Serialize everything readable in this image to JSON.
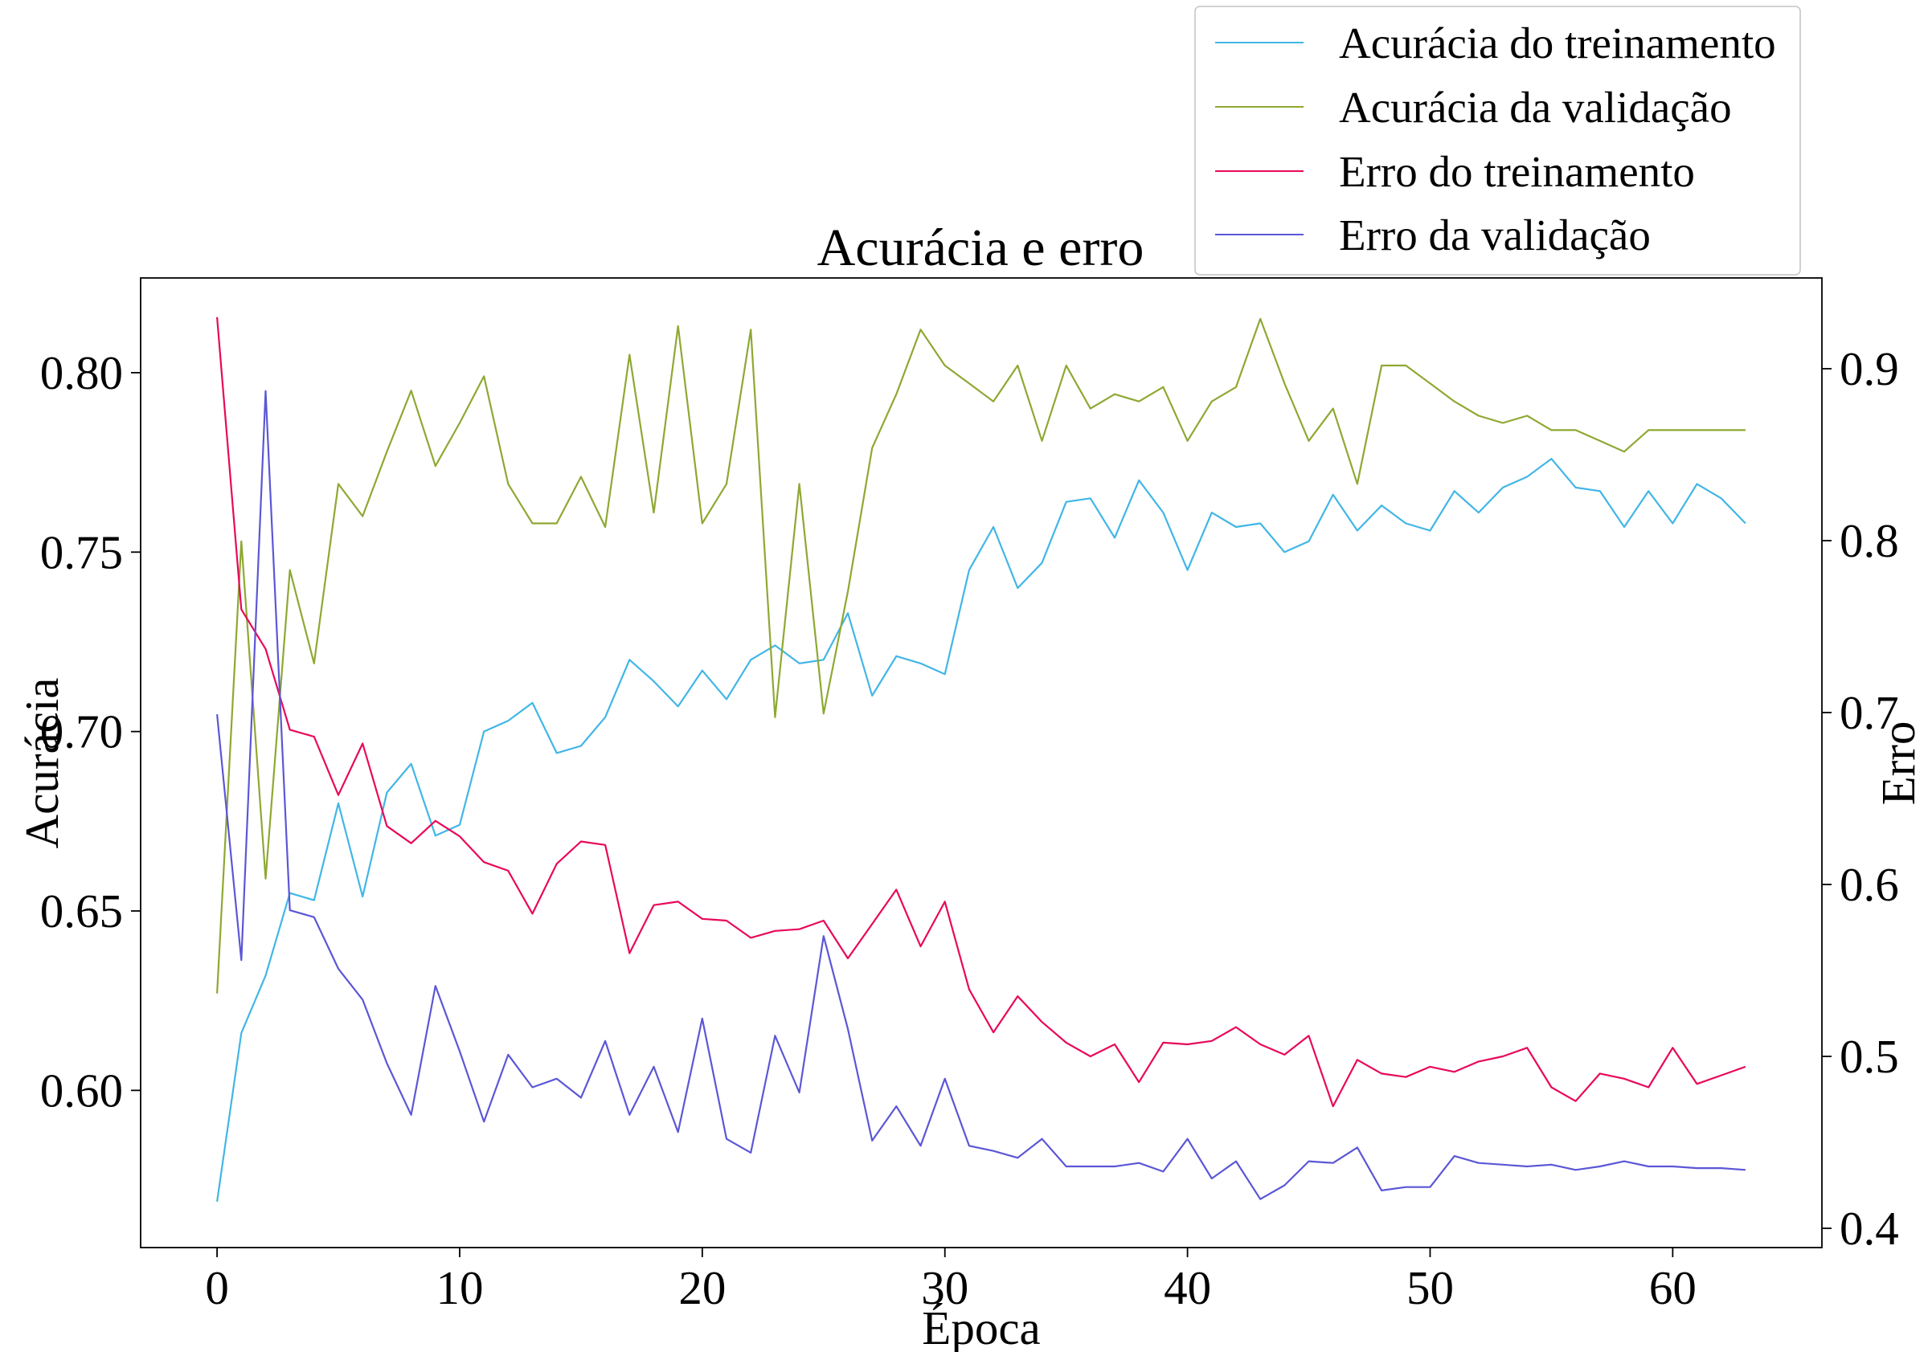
{
  "chart_data": {
    "type": "line",
    "title": "Acurácia e erro",
    "xlabel": "Época",
    "ylabel_left": "Acurácia",
    "ylabel_right": "Erro",
    "xlim": [
      -3.15,
      66.15
    ],
    "ylim_left": [
      0.5562,
      0.8264
    ],
    "ylim_right": [
      0.3888,
      0.9528
    ],
    "x_ticks": [
      0,
      10,
      20,
      30,
      40,
      50,
      60
    ],
    "x_tick_labels": [
      "0",
      "10",
      "20",
      "30",
      "40",
      "50",
      "60"
    ],
    "y_left_ticks": [
      0.6,
      0.65,
      0.7,
      0.75,
      0.8
    ],
    "y_left_tick_labels": [
      "0.60",
      "0.65",
      "0.70",
      "0.75",
      "0.80"
    ],
    "y_right_ticks": [
      0.4,
      0.5,
      0.6,
      0.7,
      0.8,
      0.9
    ],
    "y_right_tick_labels": [
      "0.4",
      "0.5",
      "0.6",
      "0.7",
      "0.8",
      "0.9"
    ],
    "grid": false,
    "legend_position": "top-right, above plot",
    "series": [
      {
        "name": "Acurácia do treinamento",
        "axis": "left",
        "color": "#41b6e6",
        "values": [
          0.569,
          0.616,
          0.632,
          0.655,
          0.653,
          0.68,
          0.654,
          0.683,
          0.691,
          0.671,
          0.674,
          0.7,
          0.703,
          0.708,
          0.694,
          0.696,
          0.704,
          0.72,
          0.714,
          0.707,
          0.717,
          0.709,
          0.72,
          0.724,
          0.719,
          0.72,
          0.733,
          0.71,
          0.721,
          0.719,
          0.716,
          0.745,
          0.757,
          0.74,
          0.747,
          0.764,
          0.765,
          0.754,
          0.77,
          0.761,
          0.745,
          0.761,
          0.757,
          0.758,
          0.75,
          0.753,
          0.766,
          0.756,
          0.763,
          0.758,
          0.756,
          0.767,
          0.761,
          0.768,
          0.771,
          0.776,
          0.768,
          0.767,
          0.757,
          0.767,
          0.758,
          0.769,
          0.765,
          0.758
        ]
      },
      {
        "name": "Acurácia da validação",
        "axis": "left",
        "color": "#8ea832",
        "values": [
          0.627,
          0.753,
          0.659,
          0.745,
          0.719,
          0.769,
          0.76,
          0.778,
          0.795,
          0.774,
          0.786,
          0.799,
          0.769,
          0.758,
          0.758,
          0.771,
          0.757,
          0.805,
          0.761,
          0.813,
          0.758,
          0.769,
          0.812,
          0.704,
          0.769,
          0.705,
          0.739,
          0.779,
          0.794,
          0.812,
          0.802,
          0.797,
          0.792,
          0.802,
          0.781,
          0.802,
          0.79,
          0.794,
          0.792,
          0.796,
          0.781,
          0.792,
          0.796,
          0.815,
          0.797,
          0.781,
          0.79,
          0.769,
          0.802,
          0.802,
          0.797,
          0.792,
          0.788,
          0.786,
          0.788,
          0.784,
          0.784,
          0.781,
          0.778,
          0.784,
          0.784,
          0.784,
          0.784,
          0.784
        ]
      },
      {
        "name": "Erro do treinamento",
        "axis": "right",
        "color": "#e8085a",
        "values": [
          0.93,
          0.76,
          0.737,
          0.69,
          0.686,
          0.652,
          0.682,
          0.634,
          0.624,
          0.637,
          0.628,
          0.613,
          0.608,
          0.583,
          0.612,
          0.625,
          0.623,
          0.56,
          0.588,
          0.59,
          0.58,
          0.579,
          0.569,
          0.573,
          0.574,
          0.579,
          0.557,
          0.577,
          0.597,
          0.564,
          0.59,
          0.539,
          0.514,
          0.535,
          0.52,
          0.508,
          0.5,
          0.507,
          0.485,
          0.508,
          0.507,
          0.509,
          0.517,
          0.507,
          0.501,
          0.512,
          0.471,
          0.498,
          0.49,
          0.488,
          0.494,
          0.491,
          0.497,
          0.5,
          0.505,
          0.482,
          0.474,
          0.49,
          0.487,
          0.482,
          0.505,
          0.484,
          0.489,
          0.494
        ]
      },
      {
        "name": "Erro da validação",
        "axis": "right",
        "color": "#5b57d6",
        "values": [
          0.699,
          0.556,
          0.887,
          0.585,
          0.581,
          0.551,
          0.533,
          0.496,
          0.466,
          0.541,
          0.503,
          0.462,
          0.501,
          0.482,
          0.487,
          0.476,
          0.509,
          0.466,
          0.494,
          0.456,
          0.522,
          0.452,
          0.444,
          0.512,
          0.479,
          0.57,
          0.516,
          0.451,
          0.471,
          0.448,
          0.487,
          0.448,
          0.445,
          0.441,
          0.452,
          0.436,
          0.436,
          0.436,
          0.438,
          0.433,
          0.452,
          0.429,
          0.439,
          0.417,
          0.425,
          0.439,
          0.438,
          0.447,
          0.422,
          0.424,
          0.424,
          0.442,
          0.438,
          0.437,
          0.436,
          0.437,
          0.434,
          0.436,
          0.439,
          0.436,
          0.436,
          0.435,
          0.435,
          0.434
        ]
      }
    ]
  }
}
